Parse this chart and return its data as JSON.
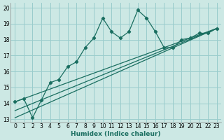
{
  "title": "",
  "xlabel": "Humidex (Indice chaleur)",
  "background_color": "#cce8e4",
  "grid_color": "#99cccc",
  "line_color": "#1a6e60",
  "xlim": [
    -0.5,
    23.5
  ],
  "ylim": [
    12.8,
    20.3
  ],
  "yticks": [
    13,
    14,
    15,
    16,
    17,
    18,
    19,
    20
  ],
  "xticks": [
    0,
    1,
    2,
    3,
    4,
    5,
    6,
    7,
    8,
    9,
    10,
    11,
    12,
    13,
    14,
    15,
    16,
    17,
    18,
    19,
    20,
    21,
    22,
    23
  ],
  "series1_x": [
    0,
    1,
    2,
    3,
    4,
    5,
    6,
    7,
    8,
    9,
    10,
    11,
    12,
    13,
    14,
    15,
    16,
    17,
    18,
    19,
    20,
    21,
    22,
    23
  ],
  "series1_y": [
    14.1,
    14.3,
    13.1,
    14.2,
    15.3,
    15.5,
    16.3,
    16.6,
    17.5,
    18.1,
    19.35,
    18.5,
    18.1,
    18.5,
    19.85,
    19.35,
    18.5,
    17.5,
    17.5,
    18.0,
    18.1,
    18.4,
    18.4,
    18.7
  ],
  "series2_x": [
    0,
    23
  ],
  "series2_y": [
    14.1,
    18.7
  ],
  "series3_x": [
    0,
    23
  ],
  "series3_y": [
    13.1,
    18.7
  ],
  "series4_x": [
    0,
    23
  ],
  "series4_y": [
    13.55,
    18.7
  ]
}
